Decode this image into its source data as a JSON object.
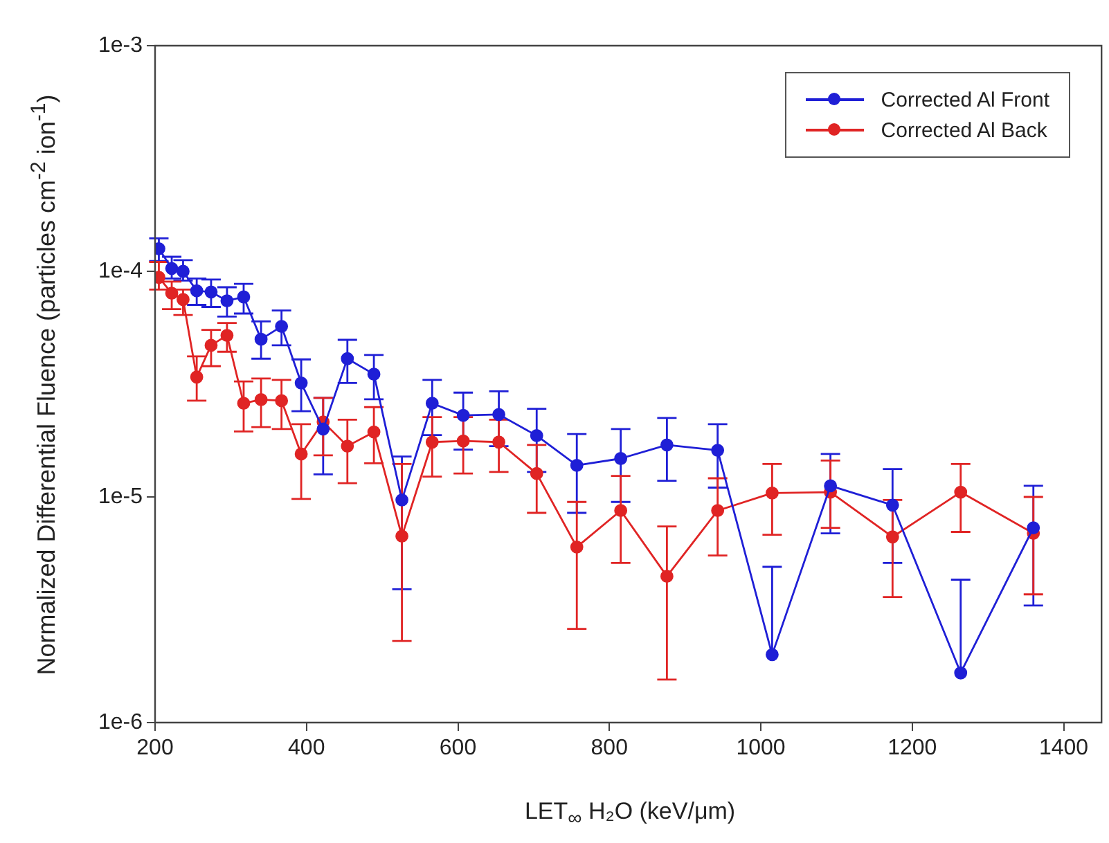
{
  "chart_data": {
    "type": "line",
    "xlabel": "LET$_{∞}$ H₂O (keV/μm)",
    "ylabel": "Normalized Differential Fluence (particles cm$^{-2}$ ion$^{-1}$)",
    "x": [
      205,
      222,
      237,
      255,
      274,
      295,
      317,
      340,
      367,
      393,
      422,
      454,
      489,
      526,
      566,
      607,
      654,
      704,
      757,
      815,
      876,
      943,
      1015,
      1092,
      1174,
      1264,
      1360
    ],
    "series": [
      {
        "name": "Corrected Al Front",
        "color": "#1f1fd6",
        "values": [
          0.000126,
          0.000103,
          0.0001,
          8.2e-05,
          8.1e-05,
          7.4e-05,
          7.7e-05,
          5e-05,
          5.7e-05,
          3.2e-05,
          2e-05,
          4.1e-05,
          3.5e-05,
          9.7e-06,
          2.6e-05,
          2.3e-05,
          2.32e-05,
          1.87e-05,
          1.38e-05,
          1.48e-05,
          1.7e-05,
          1.61e-05,
          2e-06,
          1.12e-05,
          9.2e-06,
          1.66e-06,
          7.3e-06
        ],
        "errors": [
          [
            0.000111,
            0.00014
          ],
          [
            9.3e-05,
            0.000116
          ],
          [
            9.1e-05,
            0.000112
          ],
          [
            7.1e-05,
            9.3e-05
          ],
          [
            6.95e-05,
            9.2e-05
          ],
          [
            6.3e-05,
            8.5e-05
          ],
          [
            6.5e-05,
            8.8e-05
          ],
          [
            4.1e-05,
            6e-05
          ],
          [
            4.7e-05,
            6.7e-05
          ],
          [
            2.4e-05,
            4.07e-05
          ],
          [
            1.26e-05,
            2.75e-05
          ],
          [
            3.2e-05,
            4.97e-05
          ],
          [
            2.71e-05,
            4.26e-05
          ],
          [
            3.9e-06,
            1.51e-05
          ],
          [
            1.88e-05,
            3.3e-05
          ],
          [
            1.62e-05,
            2.9e-05
          ],
          [
            1.68e-05,
            2.94e-05
          ],
          [
            1.29e-05,
            2.46e-05
          ],
          [
            8.5e-06,
            1.9e-05
          ],
          [
            9.5e-06,
            2e-05
          ],
          [
            1.18e-05,
            2.24e-05
          ],
          [
            1.1e-05,
            2.1e-05
          ],
          [
            2e-06,
            4.9e-06
          ],
          [
            6.9e-06,
            1.55e-05
          ],
          [
            5.1e-06,
            1.33e-05
          ],
          [
            1.66e-06,
            4.3e-06
          ],
          [
            3.3e-06,
            1.12e-05
          ]
        ]
      },
      {
        "name": "Corrected Al Back",
        "color": "#e02424",
        "values": [
          9.4e-05,
          8e-05,
          7.5e-05,
          3.4e-05,
          4.7e-05,
          5.2e-05,
          2.6e-05,
          2.7e-05,
          2.67e-05,
          1.55e-05,
          2.15e-05,
          1.68e-05,
          1.94e-05,
          6.7e-06,
          1.75e-05,
          1.77e-05,
          1.75e-05,
          1.27e-05,
          6e-06,
          8.7e-06,
          4.45e-06,
          8.7e-06,
          1.04e-05,
          1.05e-05,
          6.65e-06,
          1.05e-05,
          6.9e-06
        ],
        "errors": [
          [
            8.3e-05,
            0.00011
          ],
          [
            6.8e-05,
            9e-05
          ],
          [
            6.4e-05,
            8.3e-05
          ],
          [
            2.67e-05,
            4.2e-05
          ],
          [
            3.8e-05,
            5.5e-05
          ],
          [
            4.4e-05,
            5.9e-05
          ],
          [
            1.95e-05,
            3.25e-05
          ],
          [
            2.04e-05,
            3.35e-05
          ],
          [
            2e-05,
            3.3e-05
          ],
          [
            9.8e-06,
            2.1e-05
          ],
          [
            1.53e-05,
            2.75e-05
          ],
          [
            1.15e-05,
            2.2e-05
          ],
          [
            1.41e-05,
            2.5e-05
          ],
          [
            2.3e-06,
            1.4e-05
          ],
          [
            1.23e-05,
            2.26e-05
          ],
          [
            1.27e-05,
            2.26e-05
          ],
          [
            1.29e-05,
            2.2e-05
          ],
          [
            8.5e-06,
            1.7e-05
          ],
          [
            2.6e-06,
            9.5e-06
          ],
          [
            5.1e-06,
            1.24e-05
          ],
          [
            1.55e-06,
            7.4e-06
          ],
          [
            5.5e-06,
            1.21e-05
          ],
          [
            6.8e-06,
            1.4e-05
          ],
          [
            7.3e-06,
            1.45e-05
          ],
          [
            3.6e-06,
            9.7e-06
          ],
          [
            7e-06,
            1.4e-05
          ],
          [
            3.7e-06,
            1e-05
          ]
        ]
      }
    ],
    "xlim": [
      200,
      1450
    ],
    "xticks": [
      200,
      400,
      600,
      800,
      1000,
      1200,
      1400
    ],
    "log": "y",
    "ylim": [
      1e-06,
      0.001
    ],
    "yticks": [
      {
        "value": 1e-06,
        "label": "1e-6"
      },
      {
        "value": 1e-05,
        "label": "1e-5"
      },
      {
        "value": 0.0001,
        "label": "1e-4"
      },
      {
        "value": 0.001,
        "label": "1e-3"
      }
    ],
    "legend": "top right",
    "marker": "circle",
    "line_style": "solid"
  }
}
